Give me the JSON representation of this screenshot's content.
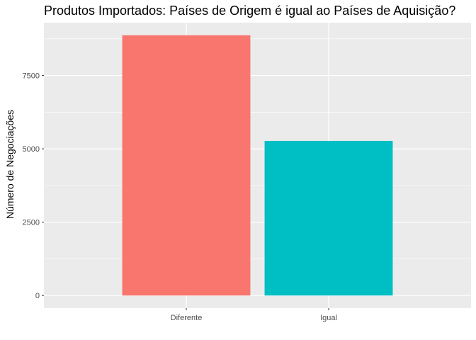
{
  "chart_data": {
    "type": "bar",
    "title": "Produtos Importados: Países de Origem é igual ao Países de Aquisição?",
    "xlabel": "",
    "ylabel": "Número de Negociações",
    "categories": [
      "Diferente",
      "Igual"
    ],
    "values": [
      8870,
      5270
    ],
    "colors": [
      "#F8766D",
      "#00BFC4"
    ],
    "panel_background": "#EBEBEB",
    "grid": true,
    "ylim": [
      -430,
      9300
    ],
    "yticks": [
      0,
      2500,
      5000,
      7500
    ],
    "ytick_labels": [
      "0",
      "2500",
      "5000",
      "7500"
    ]
  }
}
